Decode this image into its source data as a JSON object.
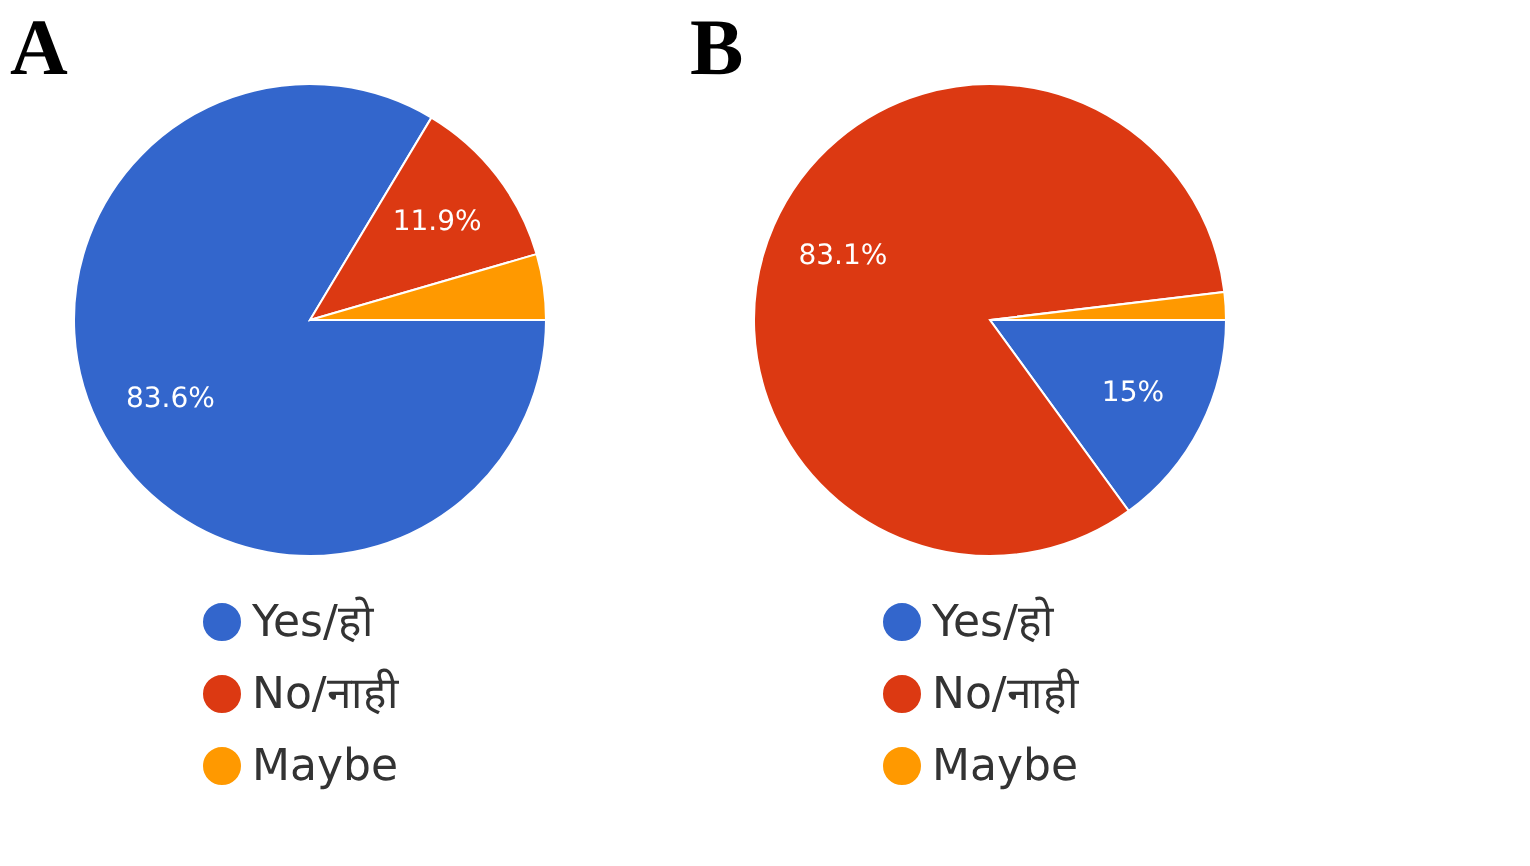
{
  "chart_data": [
    {
      "type": "pie",
      "title": "A",
      "categories": [
        "Yes/हो",
        "No/नाही",
        "Maybe"
      ],
      "values": [
        83.6,
        11.9,
        4.5
      ],
      "colors": [
        "#3366cc",
        "#dc3912",
        "#ff9900"
      ],
      "value_labels": [
        "83.6%",
        "11.9%",
        null
      ],
      "legend": "bottom"
    },
    {
      "type": "pie",
      "title": "B",
      "categories": [
        "Yes/हो",
        "No/नाही",
        "Maybe"
      ],
      "values": [
        15,
        83.1,
        1.9
      ],
      "colors": [
        "#3366cc",
        "#dc3912",
        "#ff9900"
      ],
      "value_labels": [
        "15%",
        "83.1%",
        null
      ],
      "legend": "bottom"
    }
  ]
}
